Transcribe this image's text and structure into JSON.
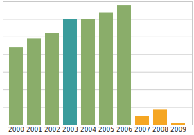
{
  "chart_data": {
    "type": "bar",
    "categories": [
      "2000",
      "2001",
      "2002",
      "2003",
      "2004",
      "2005",
      "2006",
      "2007",
      "2008",
      "2009"
    ],
    "values": [
      4.4,
      4.9,
      5.2,
      6.0,
      6.0,
      6.35,
      6.8,
      0.5,
      0.85,
      0.08
    ],
    "colors": [
      "#8aad6a",
      "#8aad6a",
      "#8aad6a",
      "#3a9c9c",
      "#8aad6a",
      "#8aad6a",
      "#8aad6a",
      "#f5a623",
      "#f5a623",
      "#f5a623"
    ],
    "ylim": [
      0,
      7
    ],
    "yticks": [
      0,
      1,
      2,
      3,
      4,
      5,
      6,
      7
    ],
    "grid": true,
    "tick_labels": "x"
  }
}
